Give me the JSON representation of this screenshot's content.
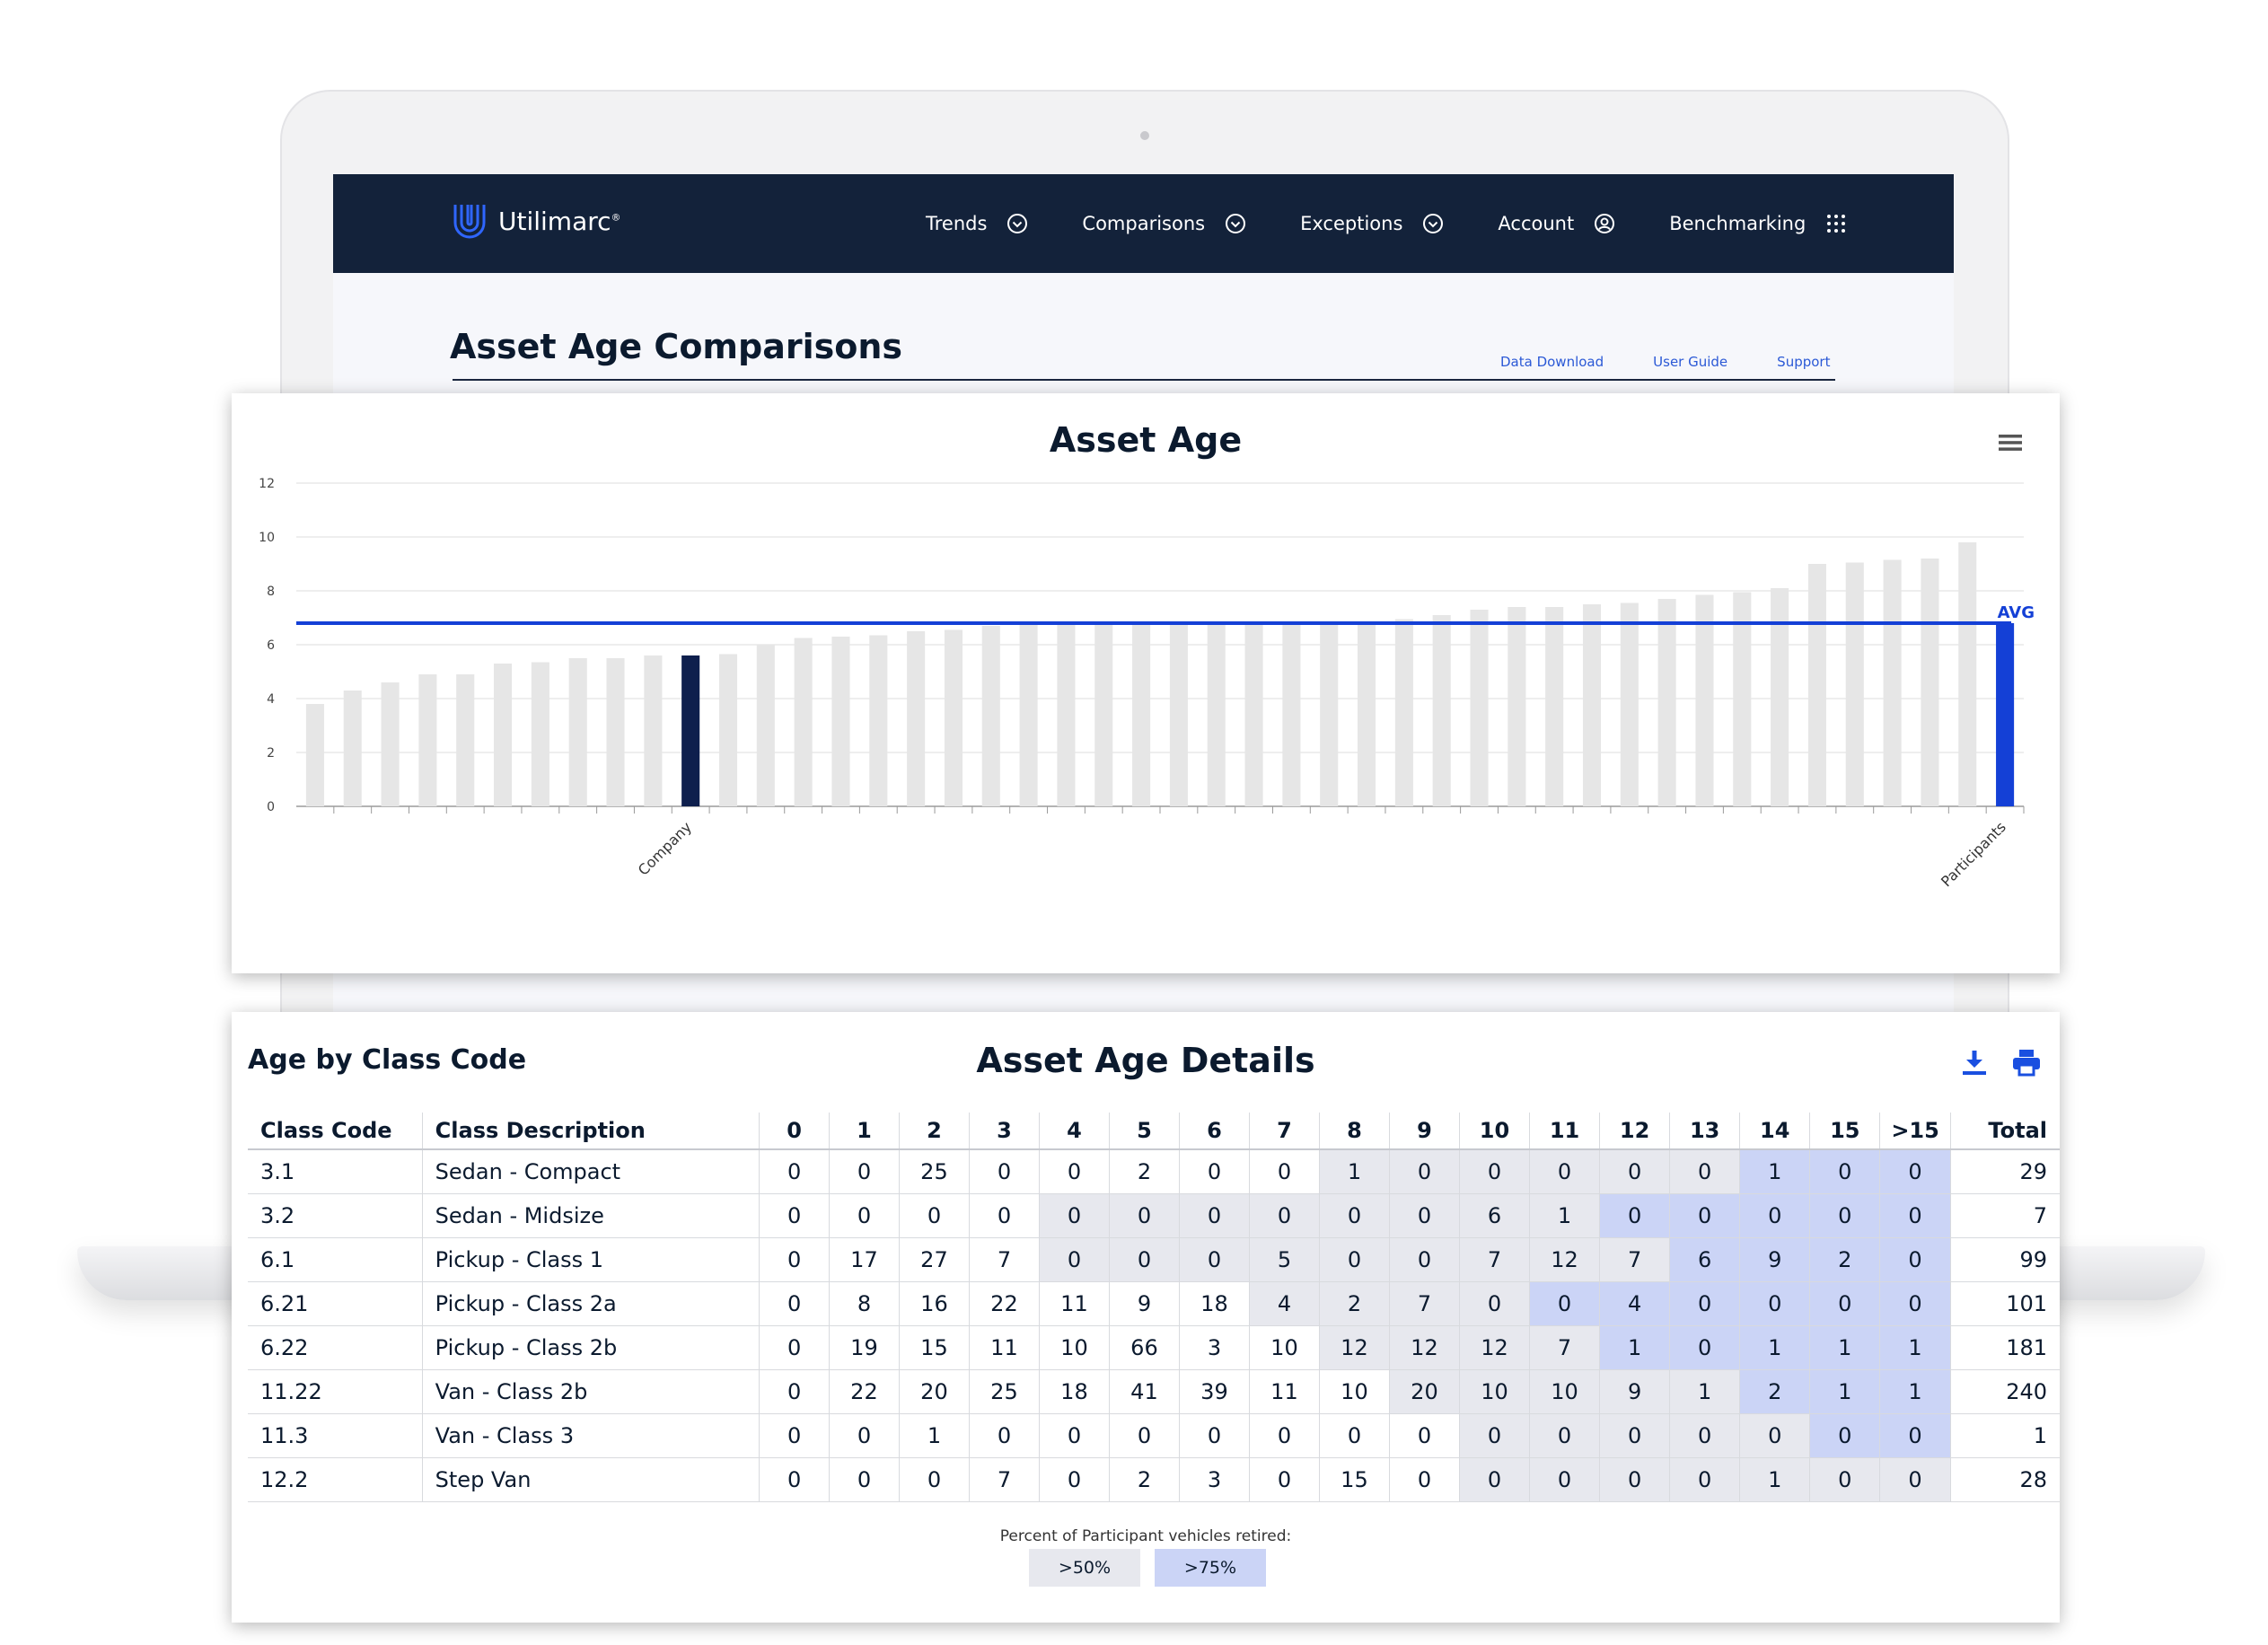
{
  "app": {
    "brand": "Utilimarc",
    "brand_mark": "®",
    "nav": [
      {
        "label": "Trends",
        "icon": "chevron-circle-down-icon"
      },
      {
        "label": "Comparisons",
        "icon": "chevron-circle-down-icon"
      },
      {
        "label": "Exceptions",
        "icon": "chevron-circle-down-icon"
      },
      {
        "label": "Account",
        "icon": "user-circle-icon"
      },
      {
        "label": "Benchmarking",
        "icon": "grid-dots-icon"
      }
    ]
  },
  "page": {
    "title": "Asset Age Comparisons",
    "links": [
      "Data Download",
      "User Guide",
      "Support"
    ]
  },
  "colors": {
    "navbar": "#13223a",
    "bar": "#e6e6e6",
    "company_bar": "#0e1f4d",
    "participants_bar": "#1440d6",
    "avg_line": "#1440d6",
    "shade_over_50": "#e7e8ee",
    "shade_over_75": "#cbd4f6"
  },
  "chart_data": {
    "type": "bar",
    "title": "Asset Age",
    "ylim": [
      0,
      12
    ],
    "yticks": [
      0,
      2,
      4,
      6,
      8,
      10,
      12
    ],
    "grid": true,
    "values": [
      3.8,
      4.3,
      4.6,
      4.9,
      4.9,
      5.3,
      5.35,
      5.5,
      5.5,
      5.6,
      5.6,
      5.65,
      6.0,
      6.25,
      6.3,
      6.35,
      6.5,
      6.55,
      6.7,
      6.75,
      6.75,
      6.8,
      6.8,
      6.8,
      6.8,
      6.8,
      6.8,
      6.8,
      6.85,
      6.95,
      7.1,
      7.3,
      7.4,
      7.4,
      7.5,
      7.55,
      7.7,
      7.85,
      7.95,
      8.1,
      9.0,
      9.05,
      9.15,
      9.2,
      9.8,
      6.8
    ],
    "highlight_company_index": 10,
    "participants_index": 45,
    "labeled_categories": [
      {
        "index": 10,
        "label": "Company"
      },
      {
        "index": 45,
        "label": "Participants"
      }
    ],
    "avg": 6.8,
    "avg_label": "AVG"
  },
  "details": {
    "section_title": "Age by Class Code",
    "title": "Asset Age Details",
    "headers": [
      "Class Code",
      "Class Description",
      "0",
      "1",
      "2",
      "3",
      "4",
      "5",
      "6",
      "7",
      "8",
      "9",
      "10",
      "11",
      "12",
      "13",
      "14",
      "15",
      ">15",
      "Total"
    ],
    "rows": [
      {
        "cells": [
          "3.1",
          "Sedan - Compact",
          "0",
          "0",
          "25",
          "0",
          "0",
          "2",
          "0",
          "0",
          "1",
          "0",
          "0",
          "0",
          "0",
          "0",
          "1",
          "0",
          "0",
          "29"
        ],
        "shade": [
          0,
          0,
          0,
          0,
          0,
          0,
          0,
          0,
          0,
          0,
          1,
          1,
          1,
          1,
          1,
          1,
          2,
          2,
          2,
          0
        ]
      },
      {
        "cells": [
          "3.2",
          "Sedan - Midsize",
          "0",
          "0",
          "0",
          "0",
          "0",
          "0",
          "0",
          "0",
          "0",
          "0",
          "6",
          "1",
          "0",
          "0",
          "0",
          "0",
          "0",
          "7"
        ],
        "shade": [
          0,
          0,
          0,
          0,
          0,
          0,
          1,
          1,
          1,
          1,
          1,
          1,
          1,
          1,
          2,
          2,
          2,
          2,
          2,
          0
        ]
      },
      {
        "cells": [
          "6.1",
          "Pickup - Class 1",
          "0",
          "17",
          "27",
          "7",
          "0",
          "0",
          "0",
          "5",
          "0",
          "0",
          "7",
          "12",
          "7",
          "6",
          "9",
          "2",
          "0",
          "99"
        ],
        "shade": [
          0,
          0,
          0,
          0,
          0,
          0,
          1,
          1,
          1,
          1,
          1,
          1,
          1,
          1,
          1,
          2,
          2,
          2,
          2,
          0
        ]
      },
      {
        "cells": [
          "6.21",
          "Pickup - Class 2a",
          "0",
          "8",
          "16",
          "22",
          "11",
          "9",
          "18",
          "4",
          "2",
          "7",
          "0",
          "0",
          "4",
          "0",
          "0",
          "0",
          "0",
          "101"
        ],
        "shade": [
          0,
          0,
          0,
          0,
          0,
          0,
          0,
          0,
          0,
          1,
          1,
          1,
          1,
          2,
          2,
          2,
          2,
          2,
          2,
          0
        ]
      },
      {
        "cells": [
          "6.22",
          "Pickup - Class 2b",
          "0",
          "19",
          "15",
          "11",
          "10",
          "66",
          "3",
          "10",
          "12",
          "12",
          "12",
          "7",
          "1",
          "0",
          "1",
          "1",
          "1",
          "181"
        ],
        "shade": [
          0,
          0,
          0,
          0,
          0,
          0,
          0,
          0,
          0,
          0,
          1,
          1,
          1,
          1,
          2,
          2,
          2,
          2,
          2,
          0
        ]
      },
      {
        "cells": [
          "11.22",
          "Van - Class 2b",
          "0",
          "22",
          "20",
          "25",
          "18",
          "41",
          "39",
          "11",
          "10",
          "20",
          "10",
          "10",
          "9",
          "1",
          "2",
          "1",
          "1",
          "240"
        ],
        "shade": [
          0,
          0,
          0,
          0,
          0,
          0,
          0,
          0,
          0,
          0,
          0,
          1,
          1,
          1,
          1,
          1,
          2,
          2,
          2,
          0
        ]
      },
      {
        "cells": [
          "11.3",
          "Van - Class 3",
          "0",
          "0",
          "1",
          "0",
          "0",
          "0",
          "0",
          "0",
          "0",
          "0",
          "0",
          "0",
          "0",
          "0",
          "0",
          "0",
          "0",
          "1"
        ],
        "shade": [
          0,
          0,
          0,
          0,
          0,
          0,
          0,
          0,
          0,
          0,
          0,
          0,
          1,
          1,
          1,
          1,
          1,
          2,
          2,
          0
        ]
      },
      {
        "cells": [
          "12.2",
          "Step Van",
          "0",
          "0",
          "0",
          "7",
          "0",
          "2",
          "3",
          "0",
          "15",
          "0",
          "0",
          "0",
          "0",
          "0",
          "1",
          "0",
          "0",
          "28"
        ],
        "shade": [
          0,
          0,
          0,
          0,
          0,
          0,
          0,
          0,
          0,
          0,
          0,
          0,
          1,
          1,
          1,
          1,
          1,
          1,
          1,
          0
        ]
      }
    ],
    "legend_caption": "Percent of Participant vehicles retired:",
    "legend": [
      ">50%",
      ">75%"
    ]
  }
}
